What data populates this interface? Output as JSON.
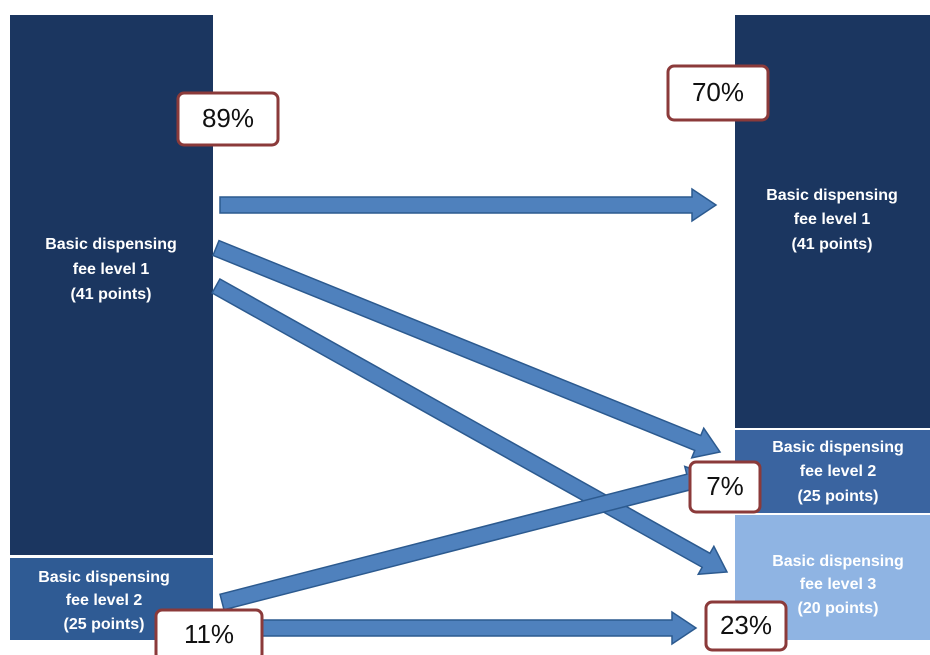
{
  "left": [
    {
      "lines": [
        "Basic dispensing",
        "fee level 1",
        "(41 points)"
      ]
    },
    {
      "lines": [
        "Basic dispensing",
        "fee level 2",
        "(25 points)"
      ]
    }
  ],
  "right": [
    {
      "lines": [
        "Basic dispensing",
        "fee level 1",
        "(41 points)"
      ]
    },
    {
      "lines": [
        "Basic dispensing",
        "fee level 2",
        "(25 points)"
      ]
    },
    {
      "lines": [
        "Basic dispensing",
        "fee level 3",
        "(20 points)"
      ]
    }
  ],
  "percentages": [
    "89%",
    "70%",
    "7%",
    "11%",
    "23%"
  ]
}
